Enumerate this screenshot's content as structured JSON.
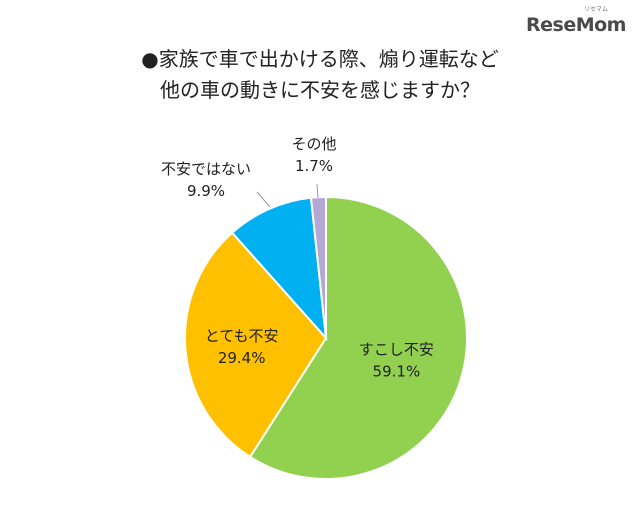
{
  "logo": {
    "text": "ReseMom",
    "kana": "リセマム"
  },
  "chart_data": {
    "type": "pie",
    "title": [
      "●家族で車で出かける際、煽り運転など",
      "他の車の動きに不安を感じますか？"
    ],
    "slices": [
      {
        "label": "すこし不安",
        "value": 59.1,
        "value_label": "59.1%",
        "color": "#92d050"
      },
      {
        "label": "とても不安",
        "value": 29.4,
        "value_label": "29.4%",
        "color": "#ffc000"
      },
      {
        "label": "不安ではない",
        "value": 9.9,
        "value_label": "9.9%",
        "color": "#00b0f0"
      },
      {
        "label": "その他",
        "value": 1.7,
        "value_label": "1.7%",
        "color": "#b4a7d6"
      }
    ],
    "start": "12 o'clock",
    "direction": "clockwise"
  }
}
